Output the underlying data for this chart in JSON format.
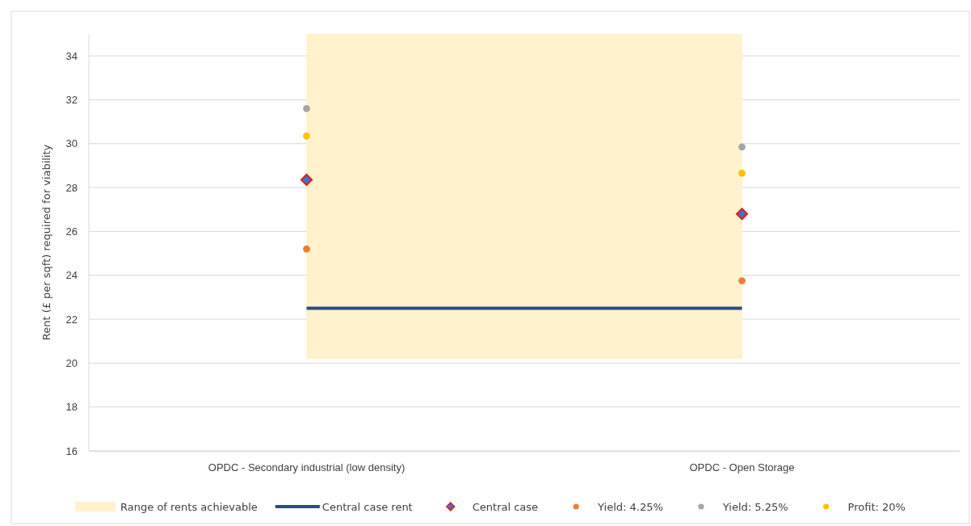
{
  "chart_data": {
    "type": "scatter",
    "ylabel": "Rent (£ per sqft) required for viability",
    "categories": [
      "OPDC - Secondary industrial (low density)",
      "OPDC - Open Storage"
    ],
    "ylim": [
      16,
      35
    ],
    "yticks": [
      16,
      18,
      20,
      22,
      24,
      26,
      28,
      30,
      32,
      34
    ],
    "grid": "y",
    "legend": "bottom",
    "bands": [
      {
        "axis": "y",
        "from": 20.2,
        "to": 35,
        "label": "Range of rents achievable",
        "color": "#fff2cc"
      }
    ],
    "series": [
      {
        "name": "Central case rent",
        "type": "line",
        "color": "#2f4a7f",
        "values": [
          22.5,
          22.5
        ]
      },
      {
        "name": "Central case",
        "marker": "diamond",
        "color": "#4472c4",
        "values": [
          28.35,
          26.8
        ]
      },
      {
        "name": "Yield: 4.25%",
        "marker": "circle",
        "color": "#ed7d31",
        "values": [
          25.2,
          23.75
        ]
      },
      {
        "name": "Yield: 5.25%",
        "marker": "circle",
        "color": "#a5a5a5",
        "values": [
          31.6,
          29.85
        ]
      },
      {
        "name": "Profit: 20%",
        "marker": "circle",
        "color": "#ffc000",
        "values": [
          30.35,
          28.65
        ]
      }
    ]
  }
}
